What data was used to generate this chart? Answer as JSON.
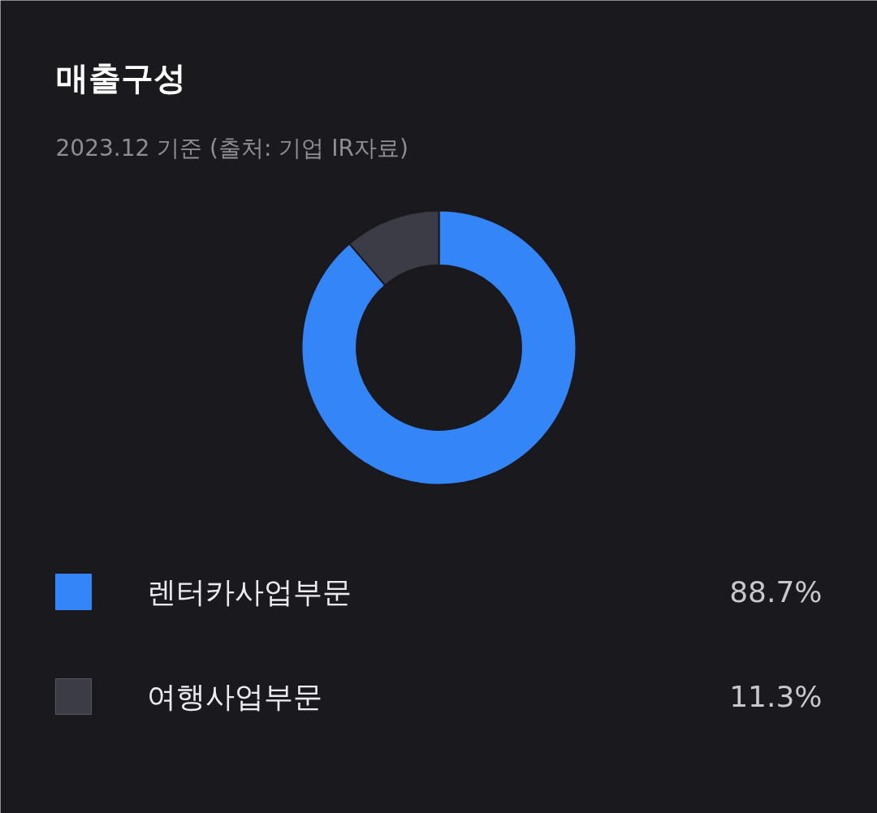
{
  "chart_data": {
    "type": "donut",
    "title": "매출구성",
    "subtitle": "2023.12 기준 (출처: 기업 IR자료)",
    "categories": [
      "렌터카사업부문",
      "여행사업부문"
    ],
    "values": [
      88.7,
      11.3
    ],
    "colors": [
      "#3385f8",
      "#3c3c47"
    ],
    "value_labels": [
      "88.7%",
      "11.3%"
    ],
    "legend": "bottom"
  }
}
